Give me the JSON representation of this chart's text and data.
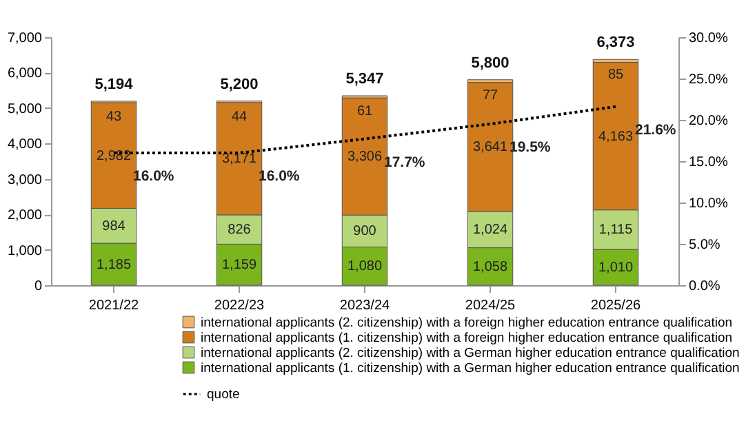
{
  "chart_data": {
    "type": "bar",
    "stacked": true,
    "categories": [
      "2021/22",
      "2022/23",
      "2023/24",
      "2024/25",
      "2025/26"
    ],
    "series": [
      {
        "name": "international applicants (1. citizenship) with a German higher education entrance qualification",
        "color": "#7ab51d",
        "values": [
          1185,
          1159,
          1080,
          1058,
          1010
        ],
        "value_labels": [
          "1,185",
          "1,159",
          "1,080",
          "1,058",
          "1,010"
        ]
      },
      {
        "name": "international applicants (2. citizenship) with a German higher education entrance qualification",
        "color": "#b5d77a",
        "values": [
          984,
          826,
          900,
          1024,
          1115
        ],
        "value_labels": [
          "984",
          "826",
          "900",
          "1,024",
          "1,115"
        ]
      },
      {
        "name": "international applicants (1. citizenship) with a foreign higher education entrance qualification",
        "color": "#d07c1e",
        "values": [
          2982,
          3171,
          3306,
          3641,
          4163
        ],
        "value_labels": [
          "2,982",
          "3,171",
          "3,306",
          "3,641",
          "4,163"
        ]
      },
      {
        "name": "international applicants (2. citizenship) with a foreign higher education entrance qualification",
        "color": "#f0b46a",
        "values": [
          43,
          44,
          61,
          77,
          85
        ],
        "value_labels": [
          "43",
          "44",
          "61",
          "77",
          "85"
        ]
      },
      {
        "name": "quote",
        "type": "line",
        "axis": "y2",
        "color": "#000000",
        "line_style": "dotted",
        "values": [
          16.0,
          16.0,
          17.7,
          19.5,
          21.6
        ],
        "value_labels": [
          "16.0%",
          "16.0%",
          "17.7%",
          "19.5%",
          "21.6%"
        ]
      }
    ],
    "totals": [
      "5,194",
      "5,200",
      "5,347",
      "5,800",
      "6,373"
    ],
    "ylim": [
      0,
      7000
    ],
    "yticks": [
      {
        "value": 0,
        "label": "0"
      },
      {
        "value": 1000,
        "label": "1,000"
      },
      {
        "value": 2000,
        "label": "2,000"
      },
      {
        "value": 3000,
        "label": "3,000"
      },
      {
        "value": 4000,
        "label": "4,000"
      },
      {
        "value": 5000,
        "label": "5,000"
      },
      {
        "value": 6000,
        "label": "6,000"
      },
      {
        "value": 7000,
        "label": "7,000"
      }
    ],
    "y2lim": [
      0,
      30
    ],
    "y2ticks": [
      {
        "value": 0,
        "label": "0.0%"
      },
      {
        "value": 5,
        "label": "5.0%"
      },
      {
        "value": 10,
        "label": "10.0%"
      },
      {
        "value": 15,
        "label": "15.0%"
      },
      {
        "value": 20,
        "label": "20.0%"
      },
      {
        "value": 25,
        "label": "25.0%"
      },
      {
        "value": 30,
        "label": "30.0%"
      }
    ],
    "grid": false,
    "legend": "bottom"
  }
}
